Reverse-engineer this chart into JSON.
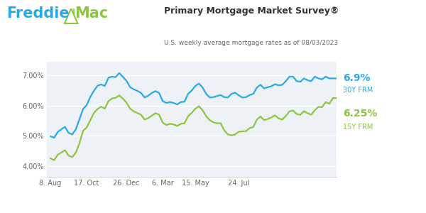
{
  "title": "Primary Mortgage Market Survey®",
  "subtitle": "U.S. weekly average mortgage rates as of 08/03/2023",
  "xtick_labels": [
    "8. Aug",
    "17. Oct",
    "26. Dec",
    "6. Mar",
    "15. May",
    "24. Jul"
  ],
  "ytick_labels": [
    "4.00%",
    "5.00%",
    "6.00%",
    "7.00%"
  ],
  "ytick_values": [
    4.0,
    5.0,
    6.0,
    7.0
  ],
  "ylim": [
    3.65,
    7.45
  ],
  "bg_color": "#eef2f6",
  "line_30y_color": "#29abe2",
  "line_15y_color": "#8dc63f",
  "label_30y": "6.9%",
  "label_30y_sub": "30Y FRM",
  "label_15y": "6.25%",
  "label_15y_sub": "15Y FRM",
  "freddie_blue": "#29abe2",
  "freddie_green": "#8dc63f",
  "freddie_text": "#333333",
  "title_color": "#333333",
  "subtitle_color": "#666666",
  "tick_color": "#666666",
  "xtick_pos": [
    0,
    10,
    21,
    31,
    40,
    52
  ],
  "x_data": [
    0,
    1,
    2,
    3,
    4,
    5,
    6,
    7,
    8,
    9,
    10,
    11,
    12,
    13,
    14,
    15,
    16,
    17,
    18,
    19,
    20,
    21,
    22,
    23,
    24,
    25,
    26,
    27,
    28,
    29,
    30,
    31,
    32,
    33,
    34,
    35,
    36,
    37,
    38,
    39,
    40,
    41,
    42,
    43,
    44,
    45,
    46,
    47,
    48,
    49,
    50,
    51,
    52,
    53,
    54,
    55,
    56,
    57,
    58,
    59,
    60,
    61,
    62,
    63,
    64,
    65,
    66,
    67,
    68,
    69,
    70,
    71,
    72,
    73,
    74,
    75,
    76,
    77,
    78,
    79
  ],
  "y_30y": [
    4.99,
    4.94,
    5.13,
    5.22,
    5.3,
    5.1,
    5.05,
    5.22,
    5.55,
    5.89,
    6.02,
    6.29,
    6.49,
    6.66,
    6.7,
    6.65,
    6.92,
    6.96,
    6.94,
    7.08,
    6.95,
    6.82,
    6.61,
    6.54,
    6.49,
    6.42,
    6.27,
    6.33,
    6.42,
    6.48,
    6.42,
    6.15,
    6.09,
    6.12,
    6.09,
    6.04,
    6.12,
    6.13,
    6.39,
    6.5,
    6.65,
    6.73,
    6.6,
    6.39,
    6.27,
    6.28,
    6.32,
    6.35,
    6.28,
    6.27,
    6.39,
    6.43,
    6.34,
    6.27,
    6.28,
    6.35,
    6.39,
    6.6,
    6.69,
    6.57,
    6.61,
    6.64,
    6.71,
    6.67,
    6.69,
    6.81,
    6.96,
    6.96,
    6.81,
    6.79,
    6.9,
    6.84,
    6.81,
    6.96,
    6.9,
    6.87,
    6.96,
    6.9,
    6.9,
    6.9
  ],
  "y_15y": [
    4.26,
    4.2,
    4.38,
    4.45,
    4.53,
    4.35,
    4.3,
    4.45,
    4.76,
    5.17,
    5.28,
    5.52,
    5.76,
    5.89,
    5.97,
    5.9,
    6.15,
    6.24,
    6.26,
    6.34,
    6.23,
    6.1,
    5.9,
    5.81,
    5.76,
    5.7,
    5.54,
    5.59,
    5.67,
    5.75,
    5.7,
    5.44,
    5.36,
    5.4,
    5.38,
    5.33,
    5.4,
    5.42,
    5.65,
    5.76,
    5.9,
    5.98,
    5.85,
    5.65,
    5.52,
    5.45,
    5.42,
    5.42,
    5.18,
    5.05,
    5.02,
    5.05,
    5.14,
    5.15,
    5.16,
    5.26,
    5.29,
    5.54,
    5.64,
    5.52,
    5.56,
    5.61,
    5.68,
    5.58,
    5.54,
    5.66,
    5.81,
    5.84,
    5.72,
    5.7,
    5.82,
    5.75,
    5.7,
    5.85,
    5.96,
    5.95,
    6.12,
    6.06,
    6.25,
    6.25
  ]
}
